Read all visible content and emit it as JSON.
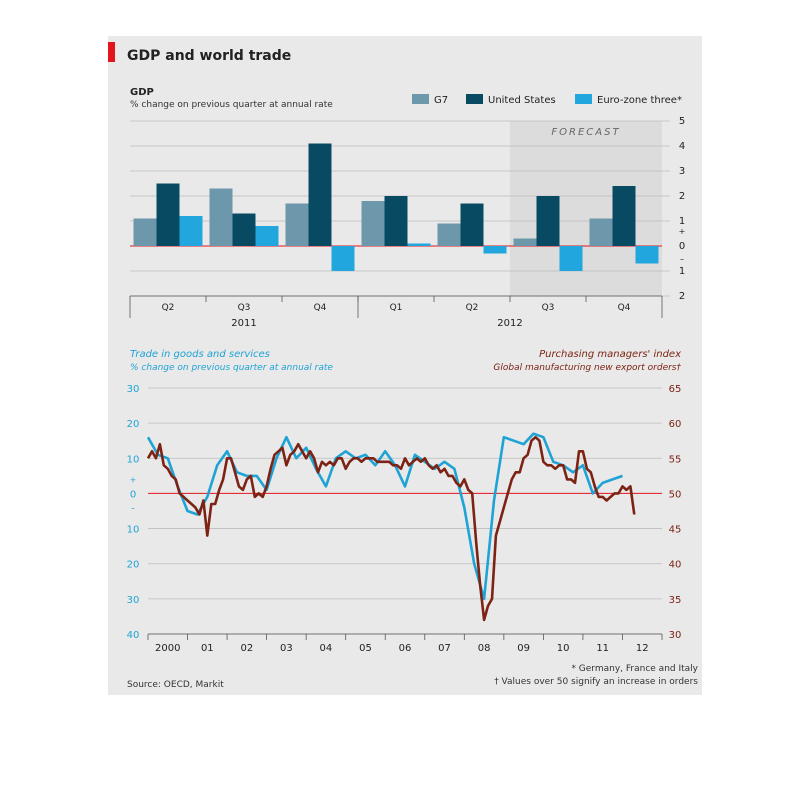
{
  "title": "GDP and world trade",
  "source": "Source: OECD, Markit",
  "footnotes": [
    "* Germany, France and Italy",
    "† Values over 50 signify an increase in orders"
  ],
  "colors": {
    "g7": "#6d98ab",
    "us": "#094a63",
    "euro": "#21a6dd",
    "trade": "#1fa3d5",
    "pmi": "#7c2314",
    "zero": "#e2141c",
    "forecast_bg": "#dcdcdc"
  },
  "chart_data": [
    {
      "type": "bar",
      "title": "GDP",
      "subtitle": "% change on previous quarter at annual rate",
      "categories": [
        "Q2",
        "Q3",
        "Q4",
        "Q1",
        "Q2",
        "Q3",
        "Q4"
      ],
      "years": [
        {
          "label": "2011",
          "from": 0,
          "to": 2
        },
        {
          "label": "2012",
          "from": 3,
          "to": 6
        }
      ],
      "forecast_label": "FORECAST",
      "forecast_from": 5,
      "ylim": [
        -2,
        5
      ],
      "yticks": [
        -2,
        -1,
        0,
        1,
        2,
        3,
        4,
        5
      ],
      "ytick_labels": [
        "2",
        "1",
        "0",
        "1",
        "2",
        "3",
        "4",
        "5"
      ],
      "series": [
        {
          "name": "G7",
          "values": [
            1.1,
            2.3,
            1.7,
            1.8,
            0.9,
            0.3,
            1.1
          ]
        },
        {
          "name": "United States",
          "values": [
            2.5,
            1.3,
            4.1,
            2.0,
            1.7,
            2.0,
            2.4
          ]
        },
        {
          "name": "Euro-zone three*",
          "values": [
            1.2,
            0.8,
            -1.0,
            0.1,
            -0.3,
            -1.0,
            -0.7
          ]
        }
      ]
    },
    {
      "type": "line",
      "left_title": "Trade in goods and services",
      "left_subtitle": "% change on previous quarter at annual rate",
      "right_title": "Purchasing managers' index",
      "right_subtitle": "Global manufacturing new export orders†",
      "x_tick_labels": [
        "2000",
        "01",
        "02",
        "03",
        "04",
        "05",
        "06",
        "07",
        "08",
        "09",
        "10",
        "11",
        "12"
      ],
      "x_range": [
        2000,
        2013
      ],
      "ylim_left": [
        -40,
        30
      ],
      "yticks_left": [
        -40,
        -30,
        -20,
        -10,
        0,
        10,
        20,
        30
      ],
      "ytick_labels_left": [
        "40",
        "30",
        "20",
        "10",
        "0",
        "10",
        "20",
        "30"
      ],
      "ylim_right": [
        30,
        65
      ],
      "yticks_right": [
        30,
        35,
        40,
        45,
        50,
        55,
        60,
        65
      ],
      "series": [
        {
          "name": "Trade in goods and services",
          "axis": "left",
          "x": [
            2000.0,
            2000.25,
            2000.5,
            2000.75,
            2001.0,
            2001.25,
            2001.5,
            2001.75,
            2002.0,
            2002.25,
            2002.5,
            2002.75,
            2003.0,
            2003.25,
            2003.5,
            2003.75,
            2004.0,
            2004.25,
            2004.5,
            2004.75,
            2005.0,
            2005.25,
            2005.5,
            2005.75,
            2006.0,
            2006.25,
            2006.5,
            2006.75,
            2007.0,
            2007.25,
            2007.5,
            2007.75,
            2008.0,
            2008.25,
            2008.5,
            2008.75,
            2009.0,
            2009.25,
            2009.5,
            2009.75,
            2010.0,
            2010.25,
            2010.5,
            2010.75,
            2011.0,
            2011.25,
            2011.5,
            2011.75,
            2012.0
          ],
          "y": [
            16,
            11,
            10,
            2,
            -5,
            -6,
            -1,
            8,
            12,
            6,
            5,
            5,
            1,
            10,
            16,
            10,
            13,
            7,
            2,
            10,
            12,
            10,
            11,
            8,
            12,
            8,
            2,
            11,
            9,
            7,
            9,
            7,
            -4,
            -20,
            -30,
            -2,
            16,
            15,
            14,
            17,
            16,
            9,
            8,
            6,
            8,
            0,
            3,
            4,
            5
          ]
        },
        {
          "name": "Purchasing managers' index",
          "axis": "right",
          "x": [
            2000.0,
            2000.1,
            2000.2,
            2000.3,
            2000.4,
            2000.5,
            2000.6,
            2000.7,
            2000.8,
            2000.9,
            2001.0,
            2001.1,
            2001.2,
            2001.3,
            2001.4,
            2001.5,
            2001.6,
            2001.7,
            2001.8,
            2001.9,
            2002.0,
            2002.1,
            2002.2,
            2002.3,
            2002.4,
            2002.5,
            2002.6,
            2002.7,
            2002.8,
            2002.9,
            2003.0,
            2003.1,
            2003.2,
            2003.3,
            2003.4,
            2003.5,
            2003.6,
            2003.7,
            2003.8,
            2003.9,
            2004.0,
            2004.1,
            2004.2,
            2004.3,
            2004.4,
            2004.5,
            2004.6,
            2004.7,
            2004.8,
            2004.9,
            2005.0,
            2005.1,
            2005.2,
            2005.3,
            2005.4,
            2005.5,
            2005.6,
            2005.7,
            2005.8,
            2005.9,
            2006.0,
            2006.1,
            2006.2,
            2006.3,
            2006.4,
            2006.5,
            2006.6,
            2006.7,
            2006.8,
            2006.9,
            2007.0,
            2007.1,
            2007.2,
            2007.3,
            2007.4,
            2007.5,
            2007.6,
            2007.7,
            2007.8,
            2007.9,
            2008.0,
            2008.1,
            2008.2,
            2008.3,
            2008.4,
            2008.5,
            2008.6,
            2008.7,
            2008.8,
            2008.9,
            2009.0,
            2009.1,
            2009.2,
            2009.3,
            2009.4,
            2009.5,
            2009.6,
            2009.7,
            2009.8,
            2009.9,
            2010.0,
            2010.1,
            2010.2,
            2010.3,
            2010.4,
            2010.5,
            2010.6,
            2010.7,
            2010.8,
            2010.9,
            2011.0,
            2011.1,
            2011.2,
            2011.3,
            2011.4,
            2011.5,
            2011.6,
            2011.7,
            2011.8,
            2011.9,
            2012.0,
            2012.1,
            2012.2,
            2012.3
          ],
          "y": [
            55,
            56,
            55,
            57,
            54,
            53.5,
            52.5,
            52,
            50,
            49.5,
            49,
            48.5,
            48,
            47,
            49,
            44,
            48.5,
            48.5,
            50.5,
            52,
            55,
            55,
            53,
            51,
            50.5,
            52,
            52.5,
            49.5,
            50,
            49.5,
            51,
            53.5,
            55.5,
            56,
            56.5,
            54,
            55.5,
            56,
            57,
            56,
            55,
            56,
            55,
            53,
            54.5,
            54,
            54.5,
            54,
            55,
            55,
            53.5,
            54.5,
            55,
            55,
            54.5,
            55,
            55,
            55,
            54.5,
            54.5,
            54.5,
            54.5,
            54,
            54,
            53.5,
            55,
            54,
            54.5,
            55,
            54.5,
            55,
            54,
            53.5,
            54,
            53,
            53.5,
            52.5,
            52.5,
            51.5,
            51,
            52,
            50.5,
            50,
            43,
            37,
            32,
            34,
            35,
            44,
            46,
            48,
            50,
            52,
            53,
            53,
            55,
            55.5,
            57.5,
            58,
            57.5,
            54.5,
            54,
            54,
            53.5,
            54,
            54,
            52,
            52,
            51.5,
            56,
            56,
            53.5,
            53,
            51,
            49.5,
            49.5,
            49,
            49.5,
            50,
            50,
            51,
            50.5,
            51,
            47
          ]
        }
      ]
    }
  ]
}
